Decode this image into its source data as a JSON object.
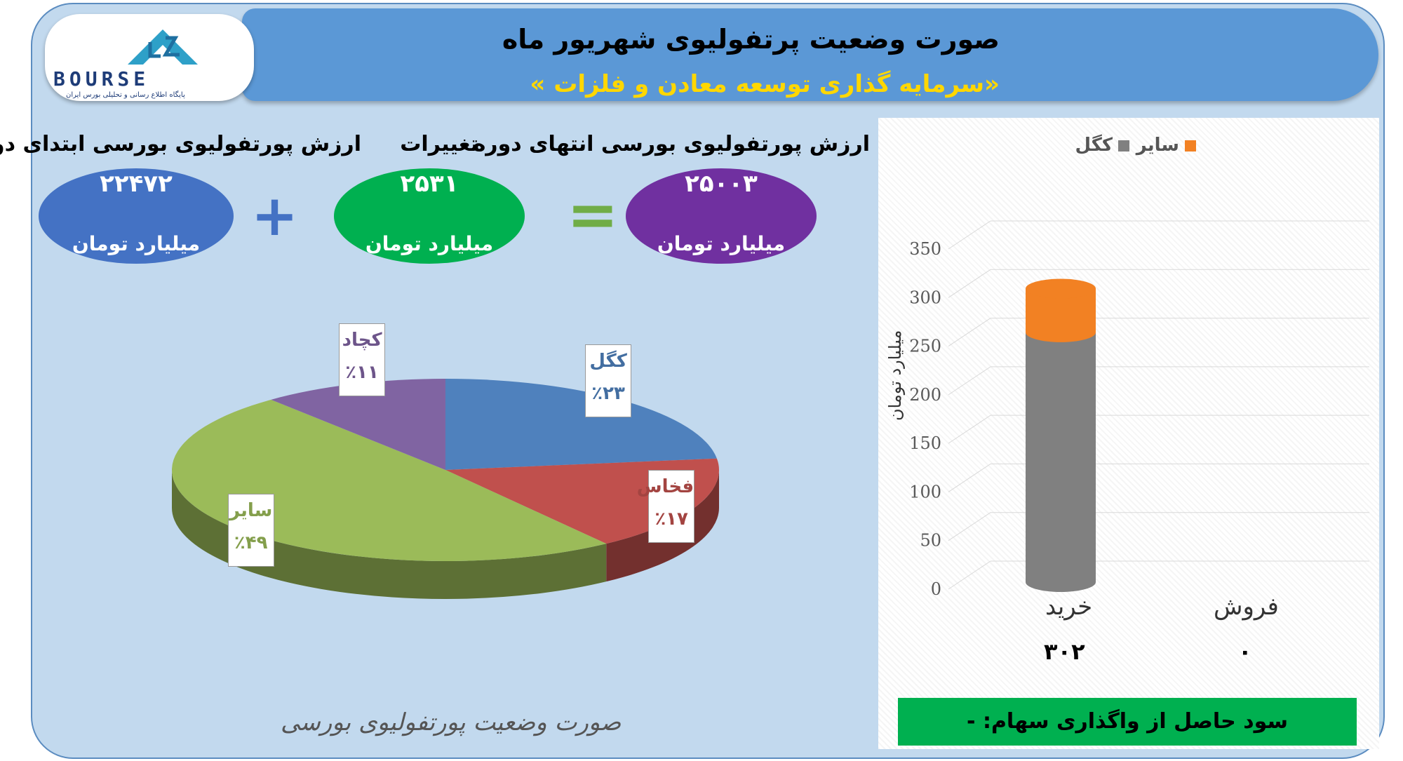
{
  "header": {
    "title": "صورت وضعیت پرتفولیوی شهریور ماه",
    "subtitle": "«سرمایه گذاری توسعه معادن و فلزات »"
  },
  "logo": {
    "text": "BOURSE",
    "tagline": "پایگاه اطلاع رسانی و تحلیلی بورس ایران"
  },
  "kpis": {
    "start": {
      "label": "ارزش پورتفولیوی بورسی ابتدای دوره",
      "value": "۲۲۴۷۲",
      "unit": "میلیارد تومان",
      "color": "#4472c4"
    },
    "change": {
      "label": "تغییرات",
      "value": "۲۵۳۱",
      "unit": "میلیارد تومان",
      "color": "#00b050"
    },
    "end": {
      "label": "ارزش پورتفولیوی بورسی انتهای دوره",
      "value": "۲۵۰۰۳",
      "unit": "میلیارد تومان",
      "color": "#7030a0"
    },
    "plus_symbol": "+",
    "equals_symbol": "="
  },
  "chart_data": [
    {
      "type": "pie",
      "title": "صورت وضعیت پورتفولیوی بورسی",
      "slices": [
        {
          "name": "کگل",
          "value": 23,
          "label": "٪۲۳",
          "color": "#4f81bd"
        },
        {
          "name": "فخاس",
          "value": 17,
          "label": "٪۱۷",
          "color": "#c0504d"
        },
        {
          "name": "سایر",
          "value": 49,
          "label": "٪۴۹",
          "color": "#9bbb59"
        },
        {
          "name": "کچاد",
          "value": 11,
          "label": "٪۱۱",
          "color": "#8064a2"
        }
      ]
    },
    {
      "type": "bar",
      "stacked": true,
      "categories": [
        "خرید",
        "فروش"
      ],
      "category_totals": [
        "۳۰۲",
        "۰"
      ],
      "series": [
        {
          "name": "کگل",
          "values": [
            257,
            0
          ],
          "color": "#808080"
        },
        {
          "name": "سایر",
          "values": [
            45,
            0
          ],
          "color": "#f28123"
        }
      ],
      "ylabel": "میلیارد تومان",
      "ylim": [
        0,
        350
      ],
      "yticks": [
        0,
        50,
        100,
        150,
        200,
        250,
        300,
        350
      ],
      "legend": "top"
    }
  ],
  "profit_note": "سود حاصل از واگذاری سهام: -"
}
